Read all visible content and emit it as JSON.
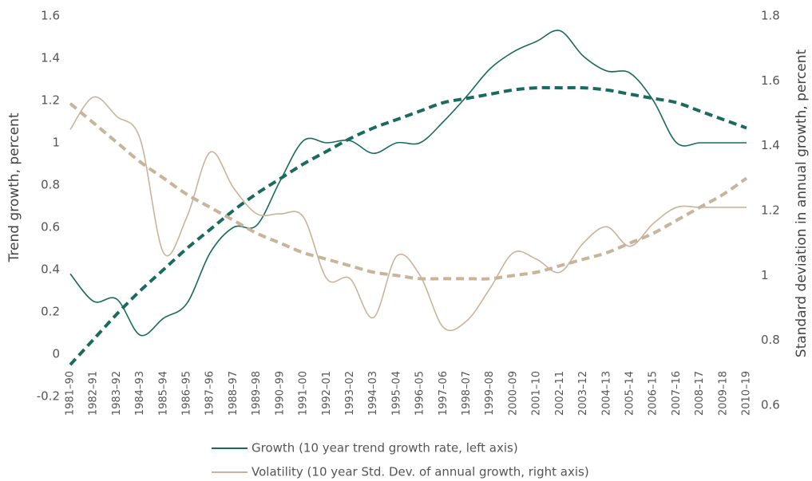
{
  "chart_data": {
    "type": "line",
    "ylabel": "Trend growth, percent",
    "y2label": "Standard deviation in annual growth, percent",
    "categories": [
      "1981–90",
      "1982–91",
      "1983–92",
      "1984–93",
      "1985–94",
      "1986–95",
      "1987–96",
      "1988–97",
      "1989–98",
      "1990–99",
      "1991–00",
      "1992–01",
      "1993–02",
      "1994–03",
      "1995–04",
      "1996–05",
      "1997–06",
      "1998–07",
      "1999–08",
      "2000–09",
      "2001–10",
      "2002–11",
      "2003–12",
      "2004–13",
      "2005–14",
      "2006–15",
      "2007–16",
      "2008–17",
      "2009–18",
      "2010–19"
    ],
    "ylim": [
      -0.2,
      1.6
    ],
    "yticks": [
      -0.2,
      0,
      0.2,
      0.4,
      0.6,
      0.8,
      1,
      1.2,
      1.4,
      1.6
    ],
    "y2lim": [
      0.6,
      1.8
    ],
    "y2ticks": [
      0.6,
      0.8,
      1,
      1.2,
      1.4,
      1.6,
      1.8
    ],
    "series": [
      {
        "name": "Growth (10 year trend growth rate, left axis)",
        "color": "#1a6b5e",
        "axis": "y",
        "values": [
          0.38,
          0.25,
          0.26,
          0.09,
          0.17,
          0.24,
          0.48,
          0.6,
          0.61,
          0.82,
          1.01,
          1.0,
          1.01,
          0.95,
          1.0,
          1.0,
          1.1,
          1.22,
          1.35,
          1.43,
          1.48,
          1.53,
          1.41,
          1.34,
          1.33,
          1.2,
          1.0,
          1.0,
          1.0,
          1.0
        ]
      },
      {
        "name": "Volatility (10 year Std. Dev. of annual growth, right axis)",
        "color": "#c8b49a",
        "axis": "y2",
        "values": [
          1.45,
          1.55,
          1.49,
          1.42,
          1.07,
          1.18,
          1.38,
          1.27,
          1.19,
          1.19,
          1.18,
          0.99,
          0.99,
          0.87,
          1.06,
          1.0,
          0.84,
          0.86,
          0.96,
          1.07,
          1.05,
          1.01,
          1.1,
          1.15,
          1.09,
          1.16,
          1.21,
          1.21,
          1.21,
          1.21
        ]
      },
      {
        "color": "#1a6b5e",
        "axis": "y",
        "dashed": true,
        "values": [
          -0.05,
          0.07,
          0.19,
          0.3,
          0.4,
          0.5,
          0.59,
          0.68,
          0.76,
          0.83,
          0.9,
          0.96,
          1.02,
          1.07,
          1.11,
          1.15,
          1.19,
          1.21,
          1.23,
          1.25,
          1.26,
          1.26,
          1.26,
          1.25,
          1.23,
          1.21,
          1.19,
          1.15,
          1.11,
          1.07
        ]
      },
      {
        "color": "#c8b49a",
        "axis": "y2",
        "dashed": true,
        "values": [
          1.53,
          1.47,
          1.41,
          1.35,
          1.3,
          1.25,
          1.21,
          1.17,
          1.13,
          1.1,
          1.07,
          1.05,
          1.03,
          1.01,
          1.0,
          0.99,
          0.99,
          0.99,
          0.99,
          1.0,
          1.01,
          1.03,
          1.05,
          1.07,
          1.1,
          1.13,
          1.17,
          1.21,
          1.25,
          1.3
        ]
      }
    ]
  }
}
